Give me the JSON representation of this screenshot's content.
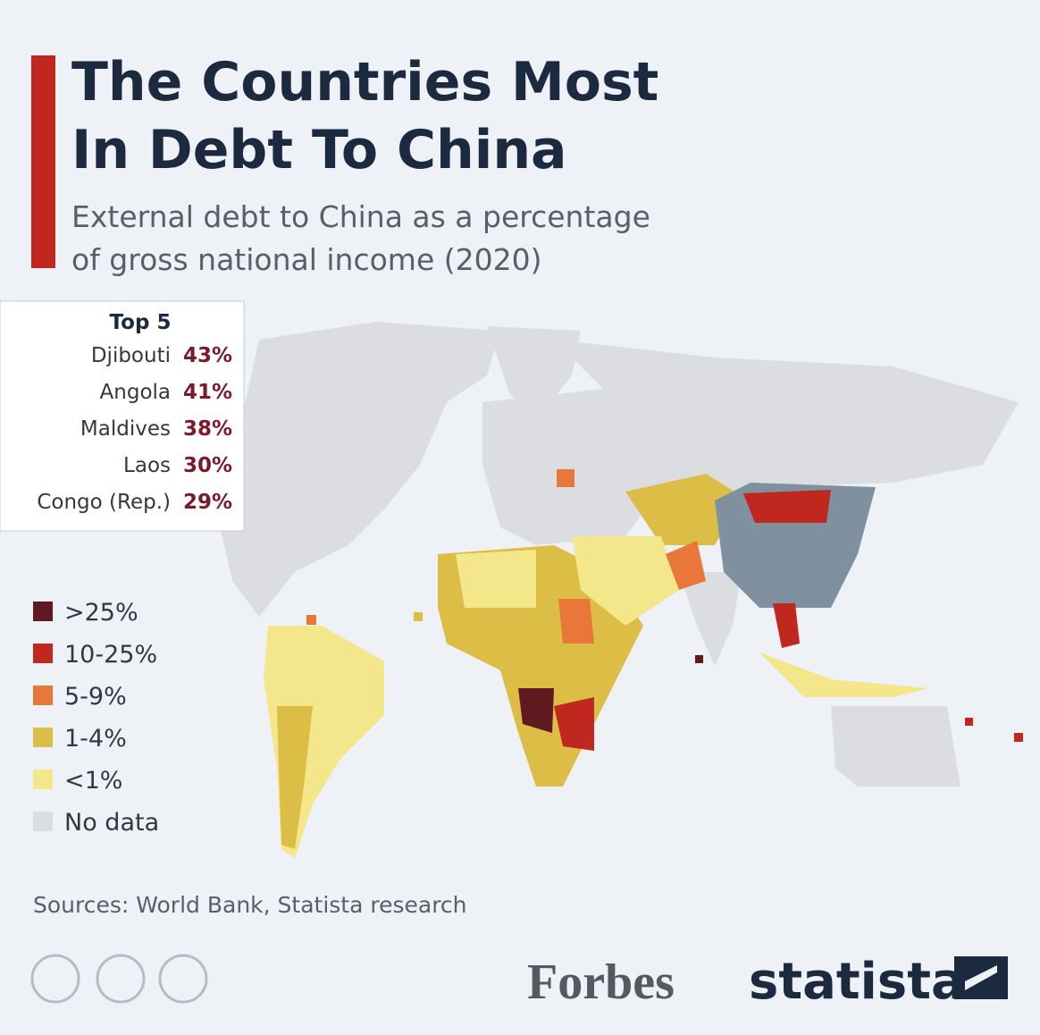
{
  "header": {
    "title_lines": [
      "The Countries Most",
      "In Debt To China"
    ],
    "subtitle_lines": [
      "External debt to China as a percentage",
      "of gross national income (2020)"
    ]
  },
  "top5": {
    "heading": "Top 5",
    "rows": [
      {
        "country": "Djibouti",
        "value": "43%"
      },
      {
        "country": "Angola",
        "value": "41%"
      },
      {
        "country": "Maldives",
        "value": "38%"
      },
      {
        "country": "Laos",
        "value": "30%"
      },
      {
        "country": "Congo (Rep.)",
        "value": "29%"
      }
    ]
  },
  "legend": [
    {
      "label": ">25%",
      "color": "#5e1a1f"
    },
    {
      "label": "10-25%",
      "color": "#c0281f"
    },
    {
      "label": "5-9%",
      "color": "#e9773a"
    },
    {
      "label": "1-4%",
      "color": "#dcbd45"
    },
    {
      "label": "<1%",
      "color": "#f4e68a"
    },
    {
      "label": "No data",
      "color": "#dcdde0"
    }
  ],
  "footer": {
    "source": "Sources: World Bank, Statista research",
    "brand1": "Forbes",
    "brand2": "statista"
  }
}
